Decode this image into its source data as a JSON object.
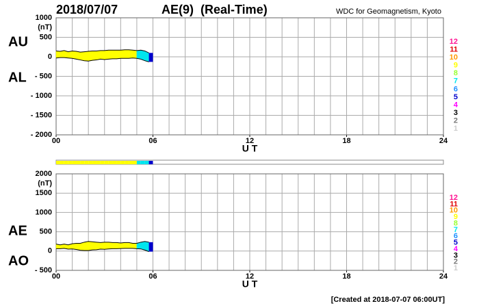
{
  "header": {
    "date": "2018/07/07",
    "title": "AE(9)  (Real-Time)",
    "source": "WDC for Geomagnetism, Kyoto",
    "footer": "[Created at 2018-07-07 06:00UT]"
  },
  "station_legend": {
    "levels": [
      12,
      11,
      10,
      9,
      8,
      7,
      6,
      5,
      4,
      3,
      2,
      1
    ],
    "colors": [
      "#ff1493",
      "#e00000",
      "#ff9900",
      "#ffff00",
      "#99ff33",
      "#00e5ee",
      "#1e90ff",
      "#0000cc",
      "#ff00ff",
      "#000000",
      "#777777",
      "#cccccc"
    ]
  },
  "chart_data": [
    {
      "type": "band",
      "ylabel": "(nT)",
      "xlabel": "U T",
      "x": [
        0,
        0.25,
        0.5,
        0.75,
        1,
        1.25,
        1.5,
        1.75,
        2,
        2.25,
        2.5,
        2.75,
        3,
        3.25,
        3.5,
        3.75,
        4,
        4.25,
        4.5,
        4.75,
        5,
        5.25,
        5.5,
        5.75
      ],
      "series": [
        {
          "name": "AU",
          "values": [
            150,
            140,
            160,
            130,
            150,
            140,
            120,
            130,
            140,
            150,
            150,
            160,
            160,
            170,
            170,
            170,
            170,
            180,
            180,
            170,
            160,
            170,
            150,
            100
          ]
        },
        {
          "name": "AL",
          "values": [
            -30,
            -20,
            -20,
            -30,
            -40,
            -60,
            -80,
            -100,
            -110,
            -90,
            -80,
            -60,
            -70,
            -60,
            -50,
            -50,
            -40,
            -40,
            -40,
            -30,
            -40,
            -60,
            -100,
            -130
          ]
        }
      ],
      "station_counts": [
        9,
        9,
        9,
        9,
        9,
        9,
        9,
        9,
        9,
        9,
        9,
        9,
        9,
        9,
        9,
        9,
        9,
        9,
        9,
        9,
        7,
        7,
        7,
        5
      ],
      "xlim": [
        0,
        24
      ],
      "ylim": [
        -2000,
        1000
      ],
      "xticks": [
        {
          "value": 0,
          "label": "00"
        },
        {
          "value": 6,
          "label": "06"
        },
        12,
        18,
        24
      ],
      "yticks": [
        1000,
        500,
        0,
        {
          "value": -500,
          "label": "- 500"
        },
        {
          "value": -1000,
          "label": "- 1000"
        },
        {
          "value": -1500,
          "label": "- 1500"
        },
        {
          "value": -2000,
          "label": "- 2000"
        }
      ],
      "xgrid_step": 1,
      "grid": true
    },
    {
      "type": "band",
      "ylabel": "(nT)",
      "xlabel": "U T",
      "x": [
        0,
        0.25,
        0.5,
        0.75,
        1,
        1.25,
        1.5,
        1.75,
        2,
        2.25,
        2.5,
        2.75,
        3,
        3.25,
        3.5,
        3.75,
        4,
        4.25,
        4.5,
        4.75,
        5,
        5.25,
        5.5,
        5.75
      ],
      "series": [
        {
          "name": "AE",
          "values": [
            180,
            160,
            180,
            160,
            190,
            200,
            200,
            230,
            250,
            240,
            230,
            220,
            230,
            230,
            220,
            220,
            210,
            220,
            220,
            200,
            200,
            230,
            250,
            230
          ]
        },
        {
          "name": "AO",
          "values": [
            60,
            60,
            70,
            50,
            55,
            40,
            20,
            15,
            15,
            30,
            35,
            50,
            45,
            55,
            60,
            60,
            65,
            70,
            70,
            70,
            60,
            55,
            25,
            -15
          ]
        }
      ],
      "station_counts": [
        9,
        9,
        9,
        9,
        9,
        9,
        9,
        9,
        9,
        9,
        9,
        9,
        9,
        9,
        9,
        9,
        9,
        9,
        9,
        9,
        7,
        7,
        7,
        5
      ],
      "xlim": [
        0,
        24
      ],
      "ylim": [
        -500,
        2000
      ],
      "xticks": [
        {
          "value": 0,
          "label": "00"
        },
        {
          "value": 6,
          "label": "06"
        },
        12,
        18,
        24
      ],
      "yticks": [
        2000,
        1500,
        1000,
        500,
        0,
        {
          "value": -500,
          "label": "- 500"
        }
      ],
      "xgrid_step": 1,
      "grid": true
    }
  ]
}
